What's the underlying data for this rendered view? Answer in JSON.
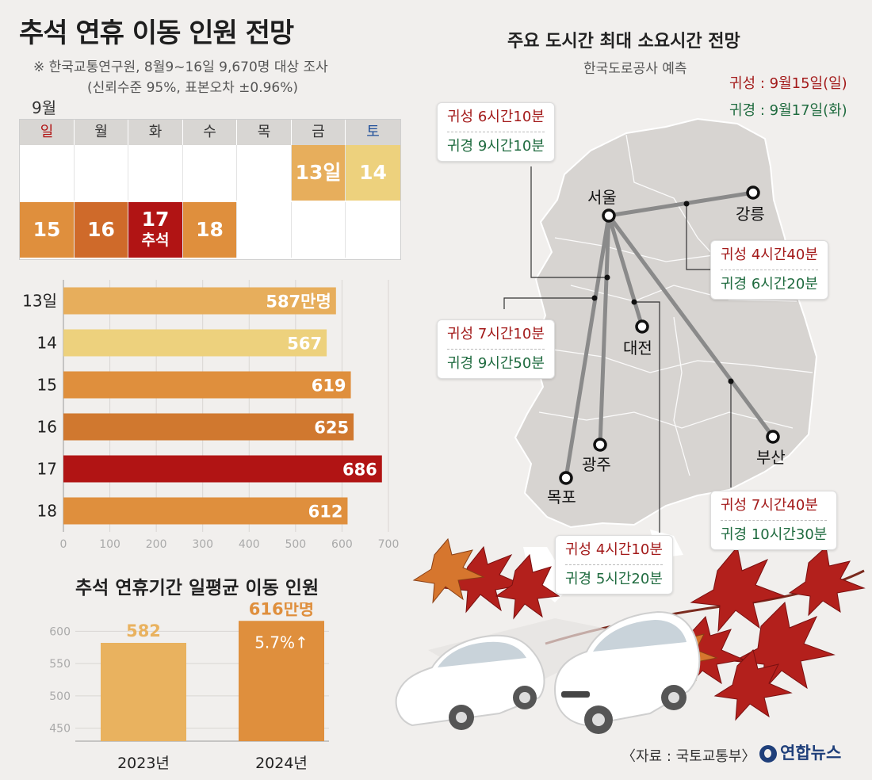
{
  "title": "추석 연휴 이동 인원 전망",
  "notes": [
    "※ 한국교통연구원, 8월9~16일 9,670명 대상 조사",
    "(신뢰수준 95%, 표본오차 ±0.96%)"
  ],
  "calendar": {
    "month": "9월",
    "weekdays": [
      "일",
      "월",
      "화",
      "수",
      "목",
      "금",
      "토"
    ],
    "row1": [
      {
        "day": "",
        "color": "#ffffff"
      },
      {
        "day": "",
        "color": "#ffffff"
      },
      {
        "day": "",
        "color": "#ffffff"
      },
      {
        "day": "",
        "color": "#ffffff"
      },
      {
        "day": "",
        "color": "#ffffff"
      },
      {
        "day": "13일",
        "color": "#e7ae5c"
      },
      {
        "day": "14",
        "color": "#edd17d"
      }
    ],
    "row2": [
      {
        "day": "15",
        "color": "#df8f3d",
        "sub": ""
      },
      {
        "day": "16",
        "color": "#cf6a2a",
        "sub": ""
      },
      {
        "day": "17",
        "color": "#b11414",
        "sub": "추석"
      },
      {
        "day": "18",
        "color": "#df8f3d",
        "sub": ""
      },
      {
        "day": "",
        "color": "#ffffff",
        "sub": ""
      },
      {
        "day": "",
        "color": "#ffffff",
        "sub": ""
      },
      {
        "day": "",
        "color": "#ffffff",
        "sub": ""
      }
    ]
  },
  "chart_data": [
    {
      "type": "bar",
      "orientation": "horizontal",
      "categories": [
        "13일",
        "14",
        "15",
        "16",
        "17",
        "18"
      ],
      "values": [
        587,
        567,
        619,
        625,
        686,
        612
      ],
      "value_labels": [
        "587만명",
        "567",
        "619",
        "625",
        "686",
        "612"
      ],
      "colors": [
        "#e7ae5c",
        "#edd17d",
        "#df8f3d",
        "#d0782f",
        "#b11414",
        "#df8f3d"
      ],
      "xlim": [
        0,
        700
      ],
      "xticks": [
        "0",
        "100",
        "200",
        "300",
        "400",
        "500",
        "600",
        "700"
      ],
      "grid": true
    },
    {
      "type": "bar",
      "title": "추석 연휴기간 일평균 이동 인원",
      "categories": [
        "2023년",
        "2024년"
      ],
      "values": [
        582,
        616
      ],
      "value_labels": [
        "582",
        "616만명"
      ],
      "annotation": "5.7%↑",
      "colors": [
        "#e9b25f",
        "#df8f3d"
      ],
      "ylim": [
        430,
        620
      ],
      "yticks": [
        "450",
        "500",
        "550",
        "600"
      ]
    }
  ],
  "map": {
    "title": "주요 도시간 최대 소요시간 전망",
    "subtitle": "한국도로공사 예측",
    "legend_out": "귀성 : 9월15일(일)",
    "legend_ret": "귀경 : 9월17일(화)",
    "cities": [
      "서울",
      "강릉",
      "대전",
      "광주",
      "목포",
      "부산"
    ],
    "routes": [
      {
        "out": "귀성 6시간10분",
        "ret": "귀경 9시간10분"
      },
      {
        "out": "귀성 4시간40분",
        "ret": "귀경 6시간20분"
      },
      {
        "out": "귀성 7시간10분",
        "ret": "귀경 9시간50분"
      },
      {
        "out": "귀성 4시간10분",
        "ret": "귀경 5시간20분"
      },
      {
        "out": "귀성 7시간40분",
        "ret": "귀경 10시간30분"
      }
    ]
  },
  "source": "〈자료 : 국토교통부〉",
  "logo": "연합뉴스"
}
